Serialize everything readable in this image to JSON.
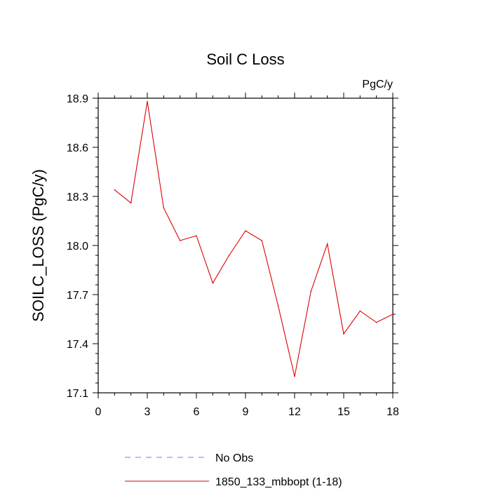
{
  "chart_data": {
    "type": "line",
    "title": "Soil C Loss",
    "units": "PgC/y",
    "ylabel": "SOILC_LOSS  (PgC/y)",
    "xlabel": "",
    "xlim": [
      0,
      18
    ],
    "ylim": [
      17.1,
      18.9
    ],
    "x_ticks": [
      0,
      3,
      6,
      9,
      12,
      15,
      18
    ],
    "x_tick_labels": [
      "0",
      "3",
      "6",
      "9",
      "12",
      "15",
      "18"
    ],
    "y_ticks": [
      17.1,
      17.4,
      17.7,
      18.0,
      18.3,
      18.6,
      18.9
    ],
    "y_tick_labels": [
      "17.1",
      "17.4",
      "17.7",
      "18.0",
      "18.3",
      "18.6",
      "18.9"
    ],
    "grid": false,
    "legend_position": "bottom",
    "series": [
      {
        "name": "1850_133_mbbopt (1-18)",
        "color": "#e00000",
        "line_style": "solid",
        "x": [
          1,
          2,
          3,
          4,
          5,
          6,
          7,
          8,
          9,
          10,
          11,
          12,
          13,
          14,
          15,
          16,
          17,
          18
        ],
        "y": [
          18.34,
          18.26,
          18.88,
          18.23,
          18.03,
          18.06,
          17.77,
          17.94,
          18.09,
          18.03,
          17.63,
          17.2,
          17.72,
          18.01,
          17.46,
          17.6,
          17.53,
          17.58
        ]
      }
    ],
    "legend": [
      {
        "label": "No Obs",
        "color": "#7777ff",
        "line_style": "dashed"
      },
      {
        "label": "1850_133_mbbopt (1-18)",
        "color": "#e00000",
        "line_style": "solid"
      }
    ]
  }
}
